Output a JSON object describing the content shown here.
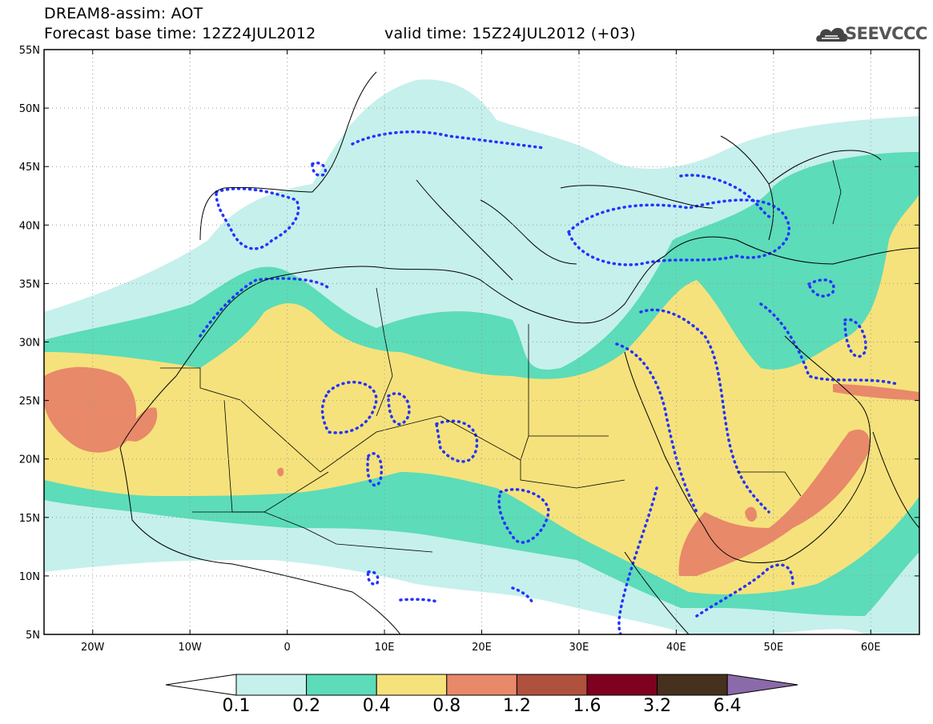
{
  "header": {
    "line1": "DREAM8-assim: AOT",
    "base_time": "Forecast base time: 12Z24JUL2012",
    "valid_time": "valid time: 15Z24JUL2012 (+03)",
    "logo_text": "SEEVCCC"
  },
  "map": {
    "lon_range": [
      -25,
      65
    ],
    "lat_range": [
      5,
      55
    ],
    "lat_ticks": [
      "55N",
      "50N",
      "45N",
      "40N",
      "35N",
      "30N",
      "25N",
      "20N",
      "15N",
      "10N",
      "5N"
    ],
    "lon_ticks": [
      "20W",
      "10W",
      "0",
      "10E",
      "20E",
      "30E",
      "40E",
      "50E",
      "60E"
    ],
    "grid": true
  },
  "colorbar": {
    "colors": [
      "#ffffff",
      "#c6f0ec",
      "#5cdcb8",
      "#f6e27c",
      "#e8896a",
      "#b0513e",
      "#800020",
      "#46301e",
      "#8a6aa8"
    ],
    "labels": [
      "0.1",
      "0.2",
      "0.4",
      "0.8",
      "1.2",
      "1.6",
      "3.2",
      "6.4"
    ]
  }
}
